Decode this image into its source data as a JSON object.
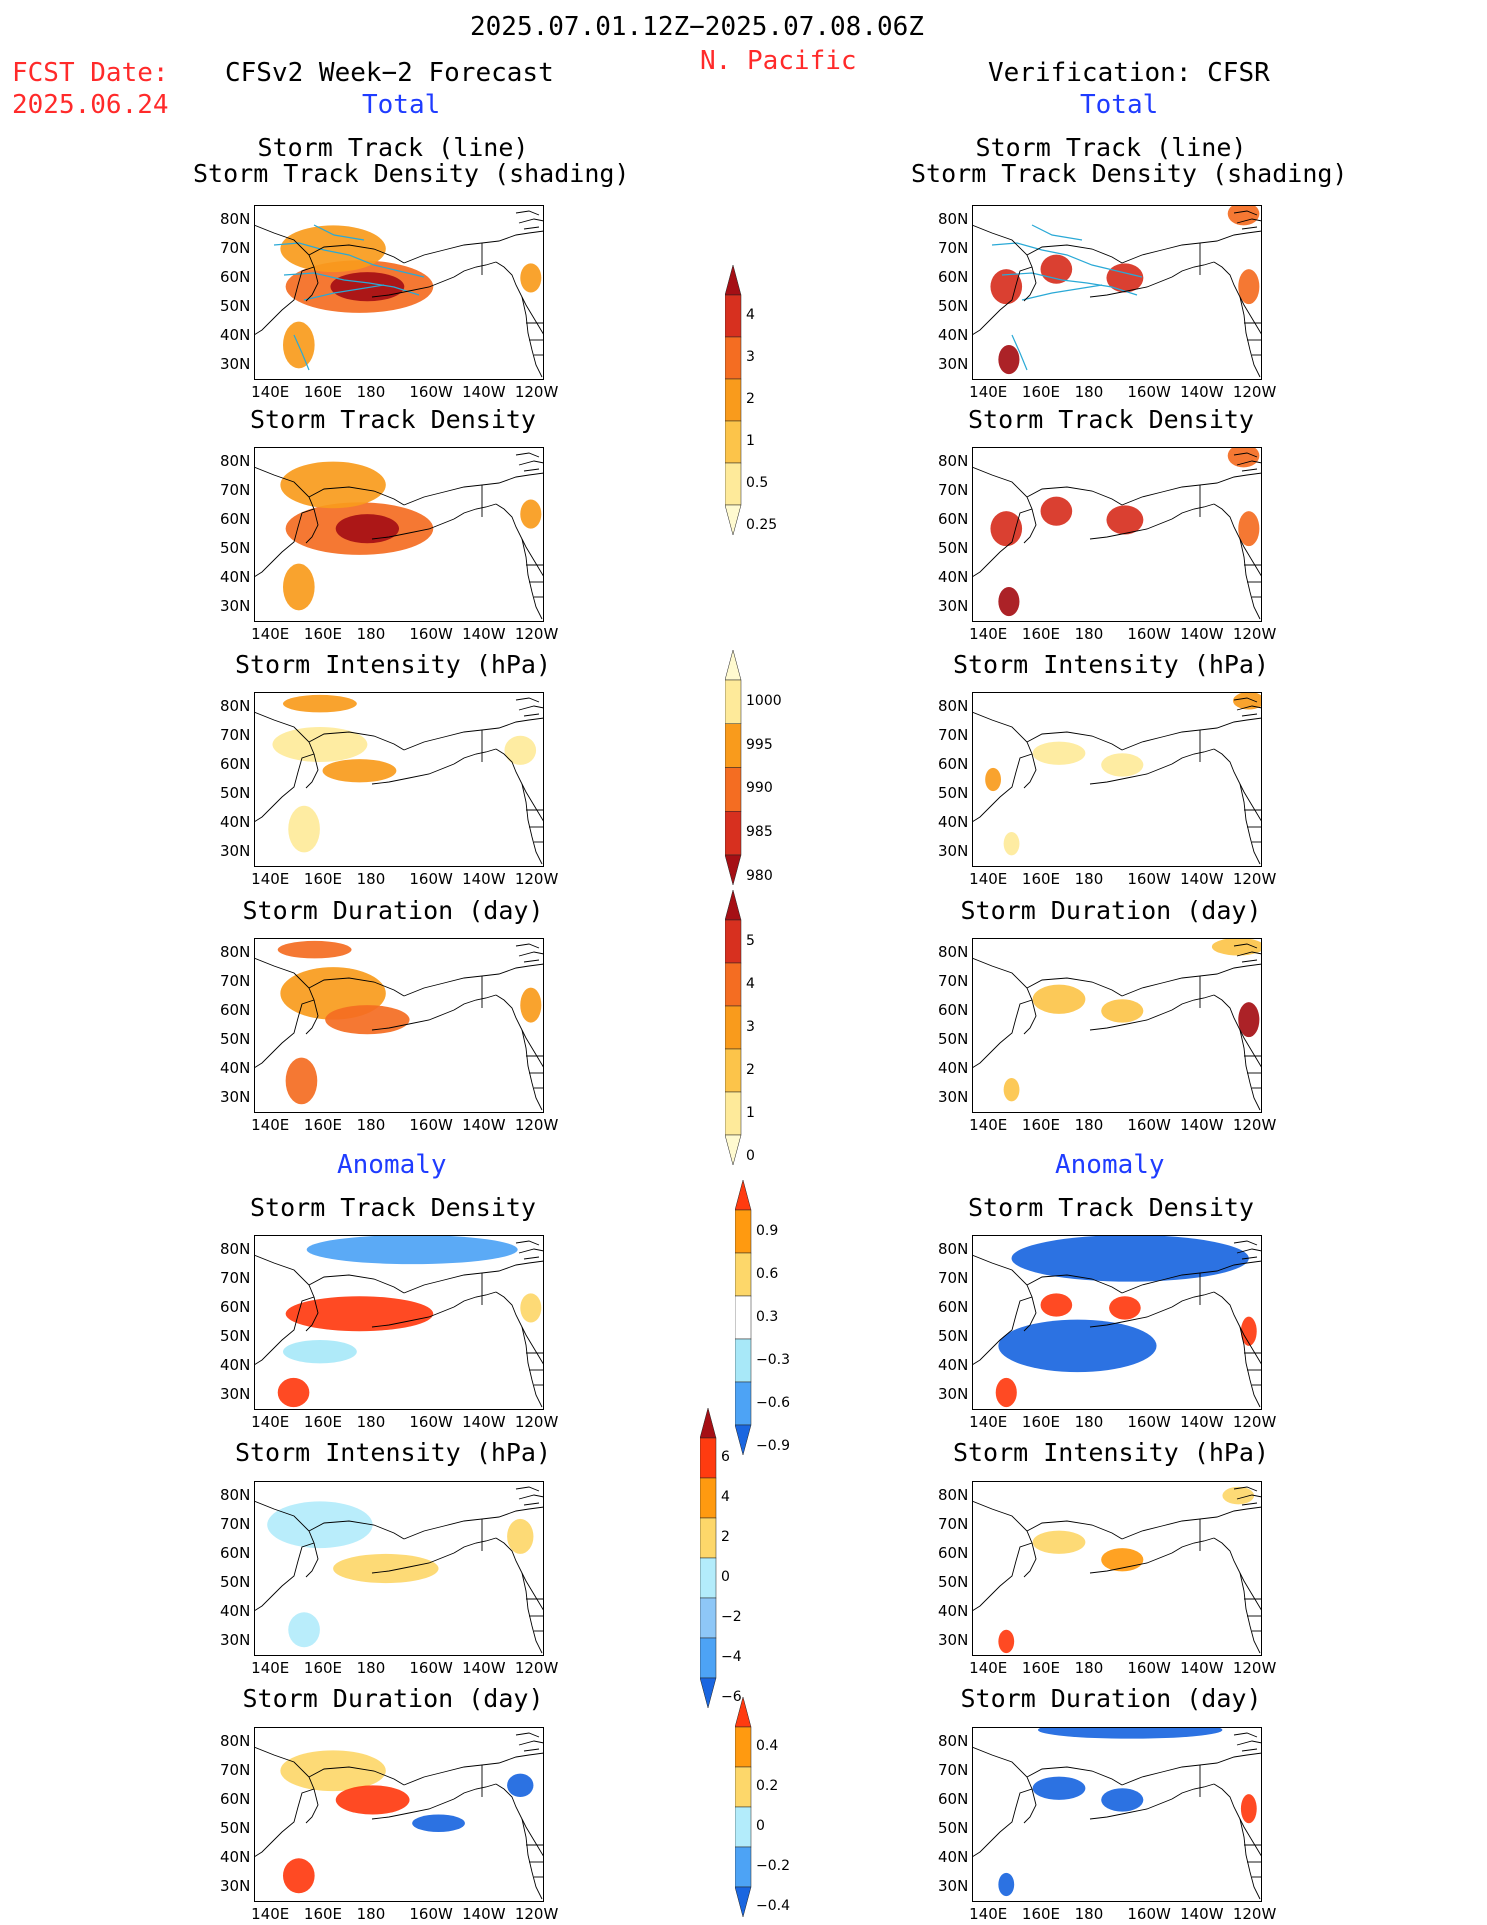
{
  "header": {
    "date_range": "2025.07.01.12Z−2025.07.08.06Z",
    "region": "N. Pacific",
    "fcst_date_label": "FCST Date:",
    "fcst_date_value": "2025.06.24",
    "left_title": "CFSv2 Week−2 Forecast",
    "right_title": "Verification: CFSR",
    "total_label": "Total",
    "anomaly_label": "Anomaly"
  },
  "panel_titles": {
    "track_line": "Storm Track (line)",
    "track_density_shading": "Storm Track Density (shading)",
    "track_density": "Storm Track Density",
    "intensity": "Storm Intensity (hPa)",
    "duration": "Storm Duration (day)"
  },
  "axes": {
    "lon_ticks": [
      "140E",
      "160E",
      "180",
      "160W",
      "140W",
      "120W"
    ],
    "lat_ticks": [
      "80N",
      "70N",
      "60N",
      "50N",
      "40N",
      "30N"
    ]
  },
  "colorbars": {
    "density_total": {
      "labels": [
        "4",
        "3",
        "2",
        "1",
        "0.5",
        "0.25"
      ],
      "colors": [
        "#a50f15",
        "#d7301f",
        "#f46d22",
        "#f99b1c",
        "#fcc44a",
        "#feea9a",
        "#fffad0"
      ]
    },
    "intensity_total": {
      "labels": [
        "1000",
        "995",
        "990",
        "985",
        "980"
      ],
      "colors": [
        "#fffad0",
        "#feea9a",
        "#f99b1c",
        "#f46d22",
        "#d7301f",
        "#a50f15"
      ]
    },
    "duration_total": {
      "labels": [
        "5",
        "4",
        "3",
        "2",
        "1",
        "0"
      ],
      "colors": [
        "#a50f15",
        "#d7301f",
        "#f46d22",
        "#f99b1c",
        "#fcc44a",
        "#feea9a",
        "#fffad0"
      ]
    },
    "density_anom": {
      "labels": [
        "0.9",
        "0.6",
        "0.3",
        "−0.3",
        "−0.6",
        "−0.9"
      ],
      "colors": [
        "#ff3b10",
        "#ff9a10",
        "#fdd76a",
        "#ffffff",
        "#a8e8f8",
        "#4da3f5",
        "#1a66e0"
      ]
    },
    "intensity_anom": {
      "labels": [
        "6",
        "4",
        "2",
        "0",
        "−2",
        "−4",
        "−6"
      ],
      "colors": [
        "#a50f15",
        "#ff3b10",
        "#ff9a10",
        "#fdd76a",
        "#b3ecfb",
        "#8ec7f7",
        "#4da3f5",
        "#1a66e0"
      ]
    },
    "duration_anom": {
      "labels": [
        "0.4",
        "0.2",
        "0",
        "−0.2",
        "−0.4"
      ],
      "colors": [
        "#ff3b10",
        "#ff9a10",
        "#fdd76a",
        "#b3ecfb",
        "#4da3f5",
        "#1a66e0"
      ]
    }
  },
  "panels": [
    {
      "id": "fc-track",
      "fills": [
        {
          "lon": 175,
          "lat": 57,
          "rx": 28,
          "ry": 9,
          "c": "#f46d22"
        },
        {
          "lon": 178,
          "lat": 57,
          "rx": 14,
          "ry": 5,
          "c": "#a50f15"
        },
        {
          "lon": 165,
          "lat": 70,
          "rx": 20,
          "ry": 8,
          "c": "#f99b1c"
        },
        {
          "lon": 152,
          "lat": 37,
          "rx": 6,
          "ry": 8,
          "c": "#f99b1c"
        },
        {
          "lon": 240,
          "lat": 60,
          "rx": 4,
          "ry": 5,
          "c": "#f99b1c"
        }
      ],
      "tracks": true
    },
    {
      "id": "vf-track",
      "fills": [
        {
          "lon": 148,
          "lat": 57,
          "rx": 6,
          "ry": 6,
          "c": "#d7301f"
        },
        {
          "lon": 167,
          "lat": 63,
          "rx": 6,
          "ry": 5,
          "c": "#d7301f"
        },
        {
          "lon": 193,
          "lat": 60,
          "rx": 7,
          "ry": 5,
          "c": "#d7301f"
        },
        {
          "lon": 149,
          "lat": 32,
          "rx": 4,
          "ry": 5,
          "c": "#a50f15"
        },
        {
          "lon": 238,
          "lat": 82,
          "rx": 6,
          "ry": 4,
          "c": "#f46d22"
        },
        {
          "lon": 240,
          "lat": 57,
          "rx": 4,
          "ry": 6,
          "c": "#f46d22"
        }
      ],
      "tracks": true
    },
    {
      "id": "fc-density",
      "fills": [
        {
          "lon": 175,
          "lat": 57,
          "rx": 28,
          "ry": 9,
          "c": "#f46d22"
        },
        {
          "lon": 178,
          "lat": 57,
          "rx": 12,
          "ry": 5,
          "c": "#a50f15"
        },
        {
          "lon": 165,
          "lat": 72,
          "rx": 20,
          "ry": 8,
          "c": "#f99b1c"
        },
        {
          "lon": 152,
          "lat": 37,
          "rx": 6,
          "ry": 8,
          "c": "#f99b1c"
        },
        {
          "lon": 240,
          "lat": 62,
          "rx": 4,
          "ry": 5,
          "c": "#f99b1c"
        }
      ],
      "tracks": false
    },
    {
      "id": "vf-density",
      "fills": [
        {
          "lon": 148,
          "lat": 57,
          "rx": 6,
          "ry": 6,
          "c": "#d7301f"
        },
        {
          "lon": 167,
          "lat": 63,
          "rx": 6,
          "ry": 5,
          "c": "#d7301f"
        },
        {
          "lon": 193,
          "lat": 60,
          "rx": 7,
          "ry": 5,
          "c": "#d7301f"
        },
        {
          "lon": 149,
          "lat": 32,
          "rx": 4,
          "ry": 5,
          "c": "#a50f15"
        },
        {
          "lon": 238,
          "lat": 82,
          "rx": 6,
          "ry": 4,
          "c": "#f46d22"
        },
        {
          "lon": 240,
          "lat": 57,
          "rx": 4,
          "ry": 6,
          "c": "#f46d22"
        }
      ],
      "tracks": false
    },
    {
      "id": "fc-intensity",
      "fills": [
        {
          "lon": 160,
          "lat": 67,
          "rx": 18,
          "ry": 6,
          "c": "#feea9a"
        },
        {
          "lon": 175,
          "lat": 58,
          "rx": 14,
          "ry": 4,
          "c": "#f99b1c"
        },
        {
          "lon": 160,
          "lat": 81,
          "rx": 14,
          "ry": 3,
          "c": "#f99b1c"
        },
        {
          "lon": 154,
          "lat": 38,
          "rx": 6,
          "ry": 8,
          "c": "#feea9a"
        },
        {
          "lon": 236,
          "lat": 65,
          "rx": 6,
          "ry": 5,
          "c": "#feea9a"
        }
      ],
      "tracks": false
    },
    {
      "id": "vf-intensity",
      "fills": [
        {
          "lon": 168,
          "lat": 64,
          "rx": 10,
          "ry": 4,
          "c": "#feea9a"
        },
        {
          "lon": 192,
          "lat": 60,
          "rx": 8,
          "ry": 4,
          "c": "#feea9a"
        },
        {
          "lon": 240,
          "lat": 82,
          "rx": 6,
          "ry": 3,
          "c": "#f99b1c"
        },
        {
          "lon": 143,
          "lat": 55,
          "rx": 3,
          "ry": 4,
          "c": "#f99b1c"
        },
        {
          "lon": 150,
          "lat": 33,
          "rx": 3,
          "ry": 4,
          "c": "#feea9a"
        }
      ],
      "tracks": false
    },
    {
      "id": "fc-duration",
      "fills": [
        {
          "lon": 165,
          "lat": 66,
          "rx": 20,
          "ry": 9,
          "c": "#f99b1c"
        },
        {
          "lon": 178,
          "lat": 57,
          "rx": 16,
          "ry": 5,
          "c": "#f46d22"
        },
        {
          "lon": 158,
          "lat": 81,
          "rx": 14,
          "ry": 3,
          "c": "#f46d22"
        },
        {
          "lon": 153,
          "lat": 36,
          "rx": 6,
          "ry": 8,
          "c": "#f46d22"
        },
        {
          "lon": 240,
          "lat": 62,
          "rx": 4,
          "ry": 6,
          "c": "#f99b1c"
        }
      ],
      "tracks": false
    },
    {
      "id": "vf-duration",
      "fills": [
        {
          "lon": 168,
          "lat": 64,
          "rx": 10,
          "ry": 5,
          "c": "#fcc44a"
        },
        {
          "lon": 192,
          "lat": 60,
          "rx": 8,
          "ry": 4,
          "c": "#fcc44a"
        },
        {
          "lon": 236,
          "lat": 82,
          "rx": 10,
          "ry": 3,
          "c": "#fcc44a"
        },
        {
          "lon": 240,
          "lat": 57,
          "rx": 4,
          "ry": 6,
          "c": "#a50f15"
        },
        {
          "lon": 150,
          "lat": 33,
          "rx": 3,
          "ry": 4,
          "c": "#fcc44a"
        }
      ],
      "tracks": false
    },
    {
      "id": "fc-dens-anom",
      "fills": [
        {
          "lon": 195,
          "lat": 80,
          "rx": 40,
          "ry": 5,
          "c": "#4da3f5"
        },
        {
          "lon": 175,
          "lat": 58,
          "rx": 28,
          "ry": 6,
          "c": "#ff3b10"
        },
        {
          "lon": 160,
          "lat": 45,
          "rx": 14,
          "ry": 4,
          "c": "#a8e8f8"
        },
        {
          "lon": 150,
          "lat": 31,
          "rx": 6,
          "ry": 5,
          "c": "#ff3b10"
        },
        {
          "lon": 240,
          "lat": 60,
          "rx": 4,
          "ry": 5,
          "c": "#fdd76a"
        }
      ],
      "tracks": false
    },
    {
      "id": "vf-dens-anom",
      "fills": [
        {
          "lon": 195,
          "lat": 77,
          "rx": 45,
          "ry": 8,
          "c": "#1a66e0"
        },
        {
          "lon": 175,
          "lat": 47,
          "rx": 30,
          "ry": 9,
          "c": "#1a66e0"
        },
        {
          "lon": 167,
          "lat": 61,
          "rx": 6,
          "ry": 4,
          "c": "#ff3b10"
        },
        {
          "lon": 193,
          "lat": 60,
          "rx": 6,
          "ry": 4,
          "c": "#ff3b10"
        },
        {
          "lon": 148,
          "lat": 31,
          "rx": 4,
          "ry": 5,
          "c": "#ff3b10"
        },
        {
          "lon": 240,
          "lat": 52,
          "rx": 3,
          "ry": 5,
          "c": "#ff3b10"
        }
      ],
      "tracks": false
    },
    {
      "id": "fc-int-anom",
      "fills": [
        {
          "lon": 160,
          "lat": 70,
          "rx": 20,
          "ry": 8,
          "c": "#b3ecfb"
        },
        {
          "lon": 185,
          "lat": 55,
          "rx": 20,
          "ry": 5,
          "c": "#fdd76a"
        },
        {
          "lon": 154,
          "lat": 34,
          "rx": 6,
          "ry": 6,
          "c": "#b3ecfb"
        },
        {
          "lon": 236,
          "lat": 66,
          "rx": 5,
          "ry": 6,
          "c": "#fdd76a"
        }
      ],
      "tracks": false
    },
    {
      "id": "vf-int-anom",
      "fills": [
        {
          "lon": 168,
          "lat": 64,
          "rx": 10,
          "ry": 4,
          "c": "#fdd76a"
        },
        {
          "lon": 192,
          "lat": 58,
          "rx": 8,
          "ry": 4,
          "c": "#ff9a10"
        },
        {
          "lon": 148,
          "lat": 30,
          "rx": 3,
          "ry": 4,
          "c": "#ff3b10"
        },
        {
          "lon": 236,
          "lat": 80,
          "rx": 6,
          "ry": 3,
          "c": "#fdd76a"
        }
      ],
      "tracks": false
    },
    {
      "id": "fc-dur-anom",
      "fills": [
        {
          "lon": 165,
          "lat": 70,
          "rx": 20,
          "ry": 7,
          "c": "#fdd76a"
        },
        {
          "lon": 180,
          "lat": 60,
          "rx": 14,
          "ry": 5,
          "c": "#ff3b10"
        },
        {
          "lon": 205,
          "lat": 52,
          "rx": 10,
          "ry": 3,
          "c": "#1a66e0"
        },
        {
          "lon": 152,
          "lat": 34,
          "rx": 6,
          "ry": 6,
          "c": "#ff3b10"
        },
        {
          "lon": 236,
          "lat": 65,
          "rx": 5,
          "ry": 4,
          "c": "#1a66e0"
        }
      ],
      "tracks": false
    },
    {
      "id": "vf-dur-anom",
      "fills": [
        {
          "lon": 195,
          "lat": 84,
          "rx": 35,
          "ry": 3,
          "c": "#1a66e0"
        },
        {
          "lon": 168,
          "lat": 64,
          "rx": 10,
          "ry": 4,
          "c": "#1a66e0"
        },
        {
          "lon": 192,
          "lat": 60,
          "rx": 8,
          "ry": 4,
          "c": "#1a66e0"
        },
        {
          "lon": 148,
          "lat": 31,
          "rx": 3,
          "ry": 4,
          "c": "#1a66e0"
        },
        {
          "lon": 240,
          "lat": 57,
          "rx": 3,
          "ry": 5,
          "c": "#ff3b10"
        }
      ],
      "tracks": false
    }
  ]
}
